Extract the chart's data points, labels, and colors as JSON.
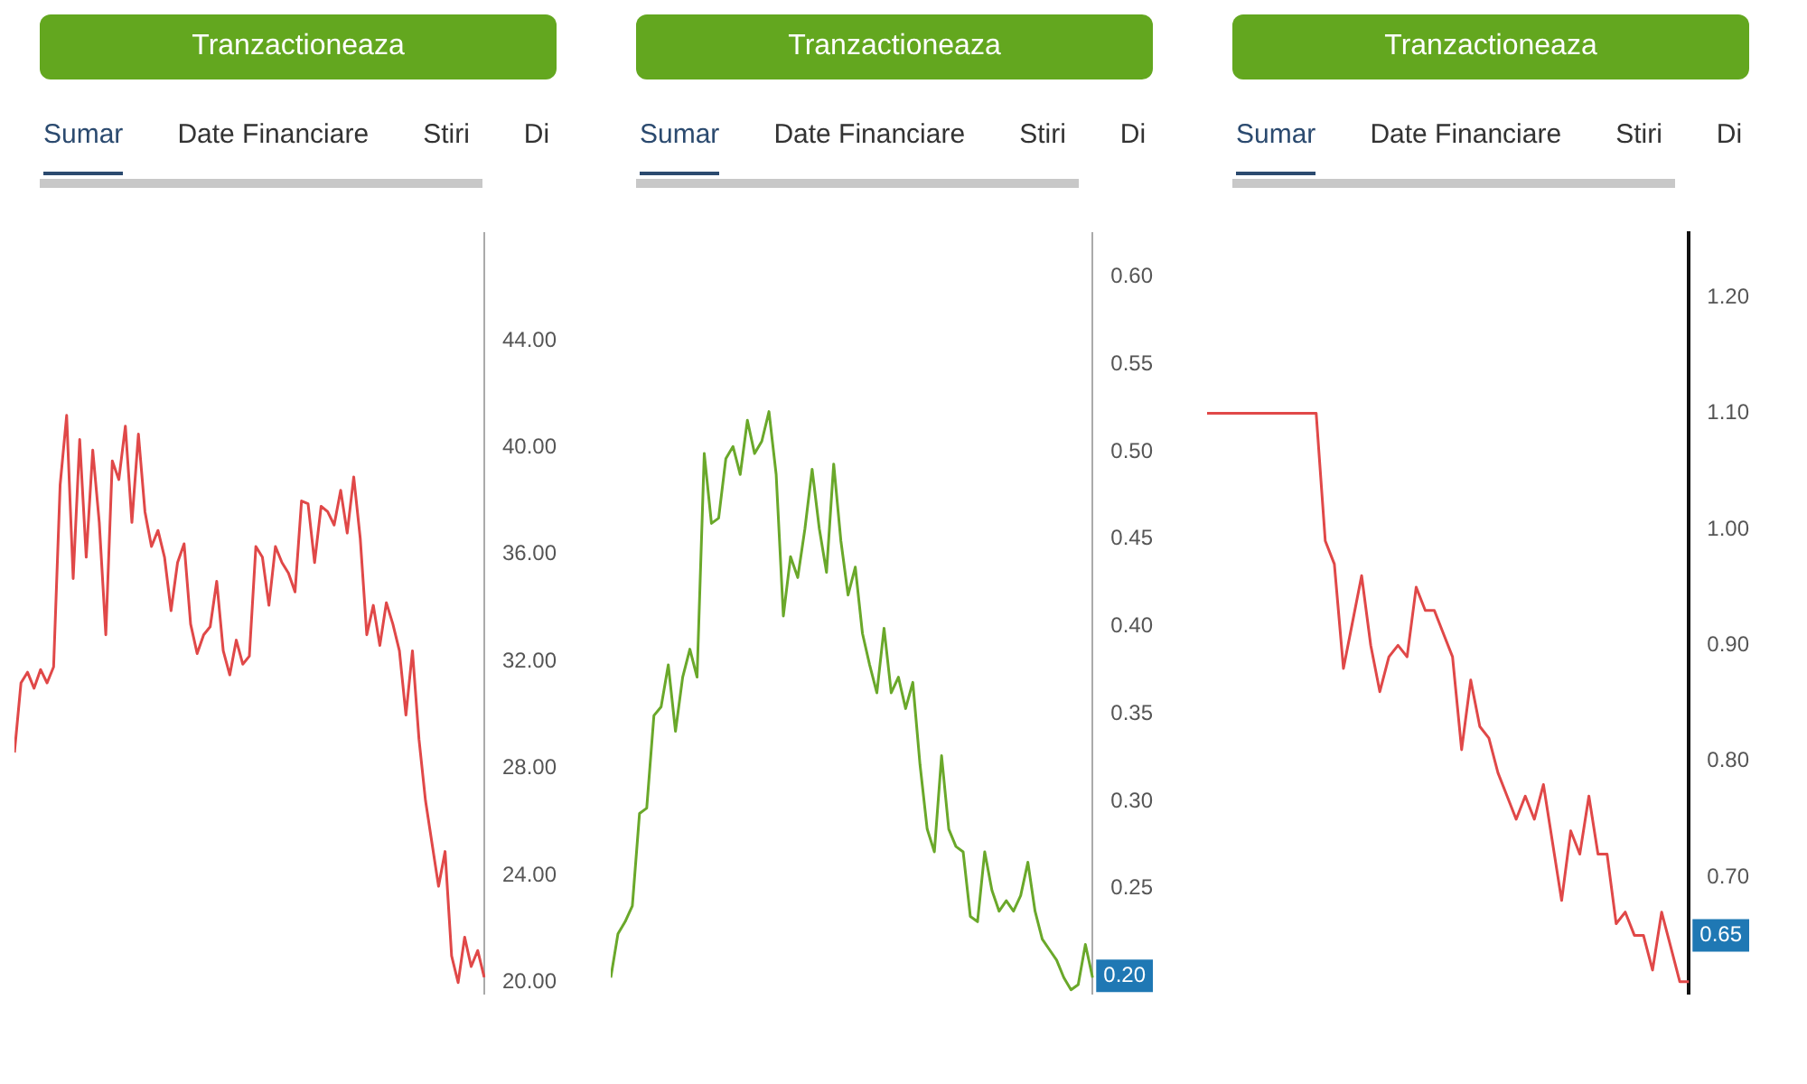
{
  "chart_data": [
    {
      "type": "line",
      "categories": [
        null,
        null,
        null,
        null,
        null,
        null,
        null,
        null,
        null,
        null,
        null,
        null,
        null,
        null,
        null,
        null,
        null,
        null,
        null,
        null,
        null,
        null,
        null,
        null,
        null,
        null,
        null,
        null,
        null,
        null,
        null,
        null,
        null,
        null,
        null,
        null,
        null,
        null,
        null,
        null,
        null,
        null,
        null,
        null,
        null,
        null,
        null,
        null,
        null,
        null,
        null,
        null,
        null,
        null,
        null,
        null,
        null,
        null,
        null,
        null,
        null,
        null,
        null,
        null,
        null,
        null,
        null,
        null,
        null,
        null,
        null,
        null,
        null
      ],
      "series": [
        {
          "color": "#e04848",
          "values": [
            28.6,
            31.2,
            31.6,
            31.0,
            31.7,
            31.2,
            31.8,
            38.6,
            41.2,
            35.1,
            40.3,
            35.9,
            39.9,
            37.2,
            33.0,
            39.5,
            38.8,
            40.8,
            37.2,
            40.5,
            37.6,
            36.3,
            36.9,
            35.9,
            33.9,
            35.7,
            36.4,
            33.4,
            32.3,
            33.0,
            33.3,
            35.0,
            32.4,
            31.5,
            32.8,
            31.9,
            32.2,
            36.3,
            35.9,
            34.1,
            36.3,
            35.7,
            35.3,
            34.6,
            38.0,
            37.9,
            35.7,
            37.8,
            37.6,
            37.1,
            38.4,
            36.8,
            38.9,
            36.6,
            33.0,
            34.1,
            32.6,
            34.2,
            33.4,
            32.4,
            30.0,
            32.4,
            29.1,
            26.8,
            25.2,
            23.6,
            24.9,
            21.0,
            20.0,
            21.7,
            20.6,
            21.2,
            20.2
          ]
        }
      ],
      "ylim": [
        19.6,
        48
      ],
      "yticks": [
        {
          "value": 20,
          "label": "20.00"
        },
        {
          "value": 24,
          "label": "24.00"
        },
        {
          "value": 28,
          "label": "28.00"
        },
        {
          "value": 32,
          "label": "32.00"
        },
        {
          "value": 36,
          "label": "36.00"
        },
        {
          "value": 40,
          "label": "40.00"
        },
        {
          "value": 44,
          "label": "44.00"
        }
      ],
      "tick_labels": "y",
      "grid": false,
      "annotations": [
        "Tranzactioneaza",
        "Sumar",
        "Date Financiare",
        "Stiri",
        "Di"
      ]
    },
    {
      "type": "line",
      "categories": [
        null,
        null,
        null,
        null,
        null,
        null,
        null,
        null,
        null,
        null,
        null,
        null,
        null,
        null,
        null,
        null,
        null,
        null,
        null,
        null,
        null,
        null,
        null,
        null,
        null,
        null,
        null,
        null,
        null,
        null,
        null,
        null,
        null,
        null,
        null,
        null,
        null,
        null,
        null,
        null,
        null,
        null,
        null,
        null,
        null,
        null,
        null,
        null,
        null,
        null,
        null,
        null,
        null,
        null,
        null,
        null,
        null,
        null,
        null,
        null,
        null,
        null,
        null,
        null,
        null,
        null,
        null,
        null
      ],
      "series": [
        {
          "color": "#6aa82a",
          "values": [
            0.199,
            0.224,
            0.231,
            0.24,
            0.293,
            0.296,
            0.349,
            0.354,
            0.378,
            0.34,
            0.371,
            0.387,
            0.371,
            0.499,
            0.459,
            0.462,
            0.496,
            0.503,
            0.487,
            0.518,
            0.499,
            0.506,
            0.523,
            0.487,
            0.406,
            0.44,
            0.428,
            0.456,
            0.49,
            0.456,
            0.431,
            0.493,
            0.449,
            0.418,
            0.434,
            0.396,
            0.378,
            0.362,
            0.399,
            0.362,
            0.371,
            0.353,
            0.368,
            0.321,
            0.284,
            0.271,
            0.326,
            0.284,
            0.274,
            0.271,
            0.234,
            0.231,
            0.271,
            0.249,
            0.237,
            0.243,
            0.237,
            0.246,
            0.265,
            0.237,
            0.221,
            0.215,
            0.209,
            0.199,
            0.192,
            0.195,
            0.218,
            0.199
          ]
        }
      ],
      "ylim": [
        0.19,
        0.625
      ],
      "yticks": [
        {
          "value": 0.25,
          "label": "0.25"
        },
        {
          "value": 0.3,
          "label": "0.30"
        },
        {
          "value": 0.35,
          "label": "0.35"
        },
        {
          "value": 0.4,
          "label": "0.40"
        },
        {
          "value": 0.45,
          "label": "0.45"
        },
        {
          "value": 0.5,
          "label": "0.50"
        },
        {
          "value": 0.55,
          "label": "0.55"
        },
        {
          "value": 0.6,
          "label": "0.60"
        }
      ],
      "tick_labels": "y",
      "grid": false,
      "annotations": [
        "Tranzactioneaza",
        "Sumar",
        "Date Financiare",
        "Stiri",
        "Di",
        {
          "text": "0.20",
          "y": 0.2
        }
      ]
    },
    {
      "type": "line",
      "categories": [
        null,
        null,
        null,
        null,
        null,
        null,
        null,
        null,
        null,
        null,
        null,
        null,
        null,
        null,
        null,
        null,
        null,
        null,
        null,
        null,
        null,
        null,
        null,
        null,
        null,
        null,
        null,
        null,
        null,
        null,
        null,
        null,
        null,
        null,
        null,
        null,
        null,
        null,
        null,
        null,
        null,
        null,
        null,
        null,
        null,
        null,
        null,
        null,
        null,
        null,
        null,
        null,
        null,
        null
      ],
      "series": [
        {
          "color": "#e04848",
          "values": [
            1.1,
            1.1,
            1.1,
            1.1,
            1.1,
            1.1,
            1.1,
            1.1,
            1.1,
            1.1,
            1.1,
            1.1,
            1.1,
            0.99,
            0.97,
            0.88,
            0.92,
            0.96,
            0.9,
            0.86,
            0.89,
            0.9,
            0.89,
            0.95,
            0.93,
            0.93,
            0.91,
            0.89,
            0.81,
            0.87,
            0.83,
            0.82,
            0.79,
            0.77,
            0.75,
            0.77,
            0.75,
            0.78,
            0.73,
            0.68,
            0.74,
            0.72,
            0.77,
            0.72,
            0.72,
            0.66,
            0.67,
            0.65,
            0.65,
            0.62,
            0.67,
            0.64,
            0.61,
            0.61
          ]
        }
      ],
      "ylim": [
        0.6,
        1.255
      ],
      "yticks": [
        {
          "value": 0.7,
          "label": "0.70"
        },
        {
          "value": 0.8,
          "label": "0.80"
        },
        {
          "value": 0.9,
          "label": "0.90"
        },
        {
          "value": 1.0,
          "label": "1.00"
        },
        {
          "value": 1.1,
          "label": "1.10"
        },
        {
          "value": 1.2,
          "label": "1.20"
        }
      ],
      "tick_labels": "y",
      "grid": false,
      "annotations": [
        "Tranzactioneaza",
        "Sumar",
        "Date Financiare",
        "Stiri",
        "Di",
        {
          "text": "0.65",
          "y": 0.65
        }
      ]
    }
  ]
}
